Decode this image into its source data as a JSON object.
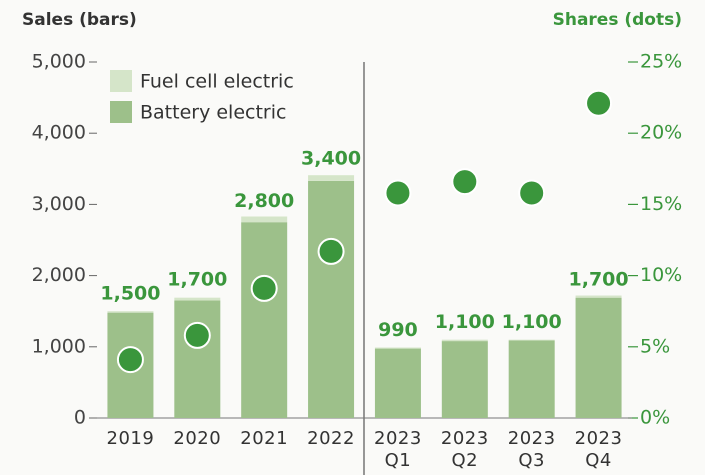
{
  "chart_data": {
    "type": "bar",
    "title": "Sales (bars)",
    "y2_title": "Shares (dots)",
    "categories": [
      "2019",
      "2020",
      "2021",
      "2022",
      "2023 Q1",
      "2023 Q2",
      "2023 Q3",
      "2023 Q4"
    ],
    "series": [
      {
        "name": "Battery electric",
        "color": "#9dc08a",
        "values": [
          1480,
          1650,
          2750,
          3330,
          975,
          1080,
          1090,
          1690
        ]
      },
      {
        "name": "Fuel cell electric",
        "color": "#d5e5c9",
        "values": [
          20,
          40,
          80,
          80,
          15,
          20,
          10,
          30
        ]
      },
      {
        "name": "Shares",
        "type": "scatter",
        "axis": "y2",
        "color": "#3a963c",
        "values": [
          4.1,
          5.8,
          9.1,
          11.7,
          15.8,
          16.6,
          15.8,
          22.1
        ]
      }
    ],
    "totals": [
      1500,
      1700,
      2800,
      3400,
      990,
      1100,
      1100,
      1700
    ],
    "value_labels": [
      "1,500",
      "1,700",
      "2,800",
      "3,400",
      "990",
      "1,100",
      "1,100",
      "1,700"
    ],
    "ylim": [
      0,
      5000
    ],
    "yticks": [
      0,
      {
        "value": 1000,
        "label": "1,000"
      },
      {
        "value": 2000,
        "label": "2,000"
      },
      {
        "value": 3000,
        "label": "3,000"
      },
      {
        "value": 4000,
        "label": "4,000"
      },
      {
        "value": 5000,
        "label": "5,000"
      }
    ],
    "y2lim": [
      0,
      25
    ],
    "y2ticks": [
      {
        "value": 0,
        "label": "0%"
      },
      {
        "value": 5,
        "label": "5%"
      },
      {
        "value": 10,
        "label": "10%"
      },
      {
        "value": 15,
        "label": "15%"
      },
      {
        "value": 20,
        "label": "20%"
      },
      {
        "value": 25,
        "label": "25%"
      }
    ]
  }
}
